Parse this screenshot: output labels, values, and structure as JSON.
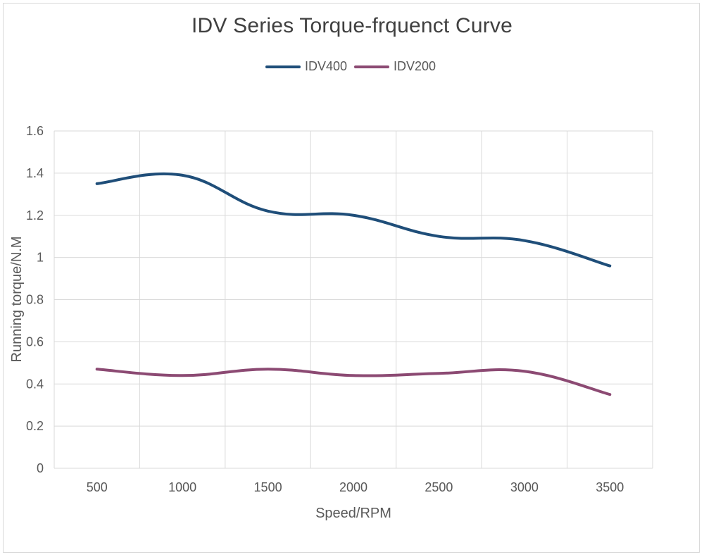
{
  "chart_data": {
    "type": "line",
    "title": "IDV Series Torque-frquenct Curve",
    "xlabel": "Speed/RPM",
    "ylabel": "Running torque/N.M",
    "categories": [
      "500",
      "1000",
      "1500",
      "2000",
      "2500",
      "3000",
      "3500"
    ],
    "ylim": [
      0,
      1.6
    ],
    "yticks": [
      "0",
      "0.2",
      "0.4",
      "0.6",
      "0.8",
      "1",
      "1.2",
      "1.4",
      "1.6"
    ],
    "grid": true,
    "legend_position": "top",
    "smooth": true,
    "series": [
      {
        "name": "IDV400",
        "color": "#1f4e79",
        "values": [
          1.35,
          1.39,
          1.22,
          1.2,
          1.1,
          1.08,
          0.96
        ]
      },
      {
        "name": "IDV200",
        "color": "#8c4a73",
        "values": [
          0.47,
          0.44,
          0.47,
          0.44,
          0.45,
          0.46,
          0.35
        ]
      }
    ]
  }
}
